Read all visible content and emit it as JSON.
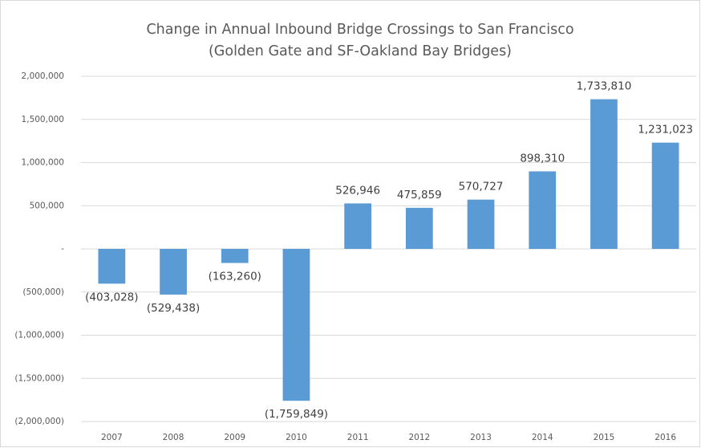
{
  "chart_data": {
    "type": "bar",
    "title": "Change in Annual Inbound Bridge Crossings to San Francisco",
    "subtitle": "(Golden Gate and SF-Oakland Bay Bridges)",
    "categories": [
      "2007",
      "2008",
      "2009",
      "2010",
      "2011",
      "2012",
      "2013",
      "2014",
      "2015",
      "2016"
    ],
    "values": [
      -403028,
      -529438,
      -163260,
      -1759849,
      526946,
      475859,
      570727,
      898310,
      1733810,
      1231023
    ],
    "value_labels": [
      "(403,028)",
      "(529,438)",
      "(163,260)",
      "(1,759,849)",
      "526,946",
      "475,859",
      "570,727",
      "898,310",
      "1,733,810",
      "1,231,023"
    ],
    "color": "#5b9bd5",
    "ylim": [
      -2000000,
      2000000
    ],
    "yticks": [
      {
        "value": -2000000,
        "label": "(2,000,000)"
      },
      {
        "value": -1500000,
        "label": "(1,500,000)"
      },
      {
        "value": -1000000,
        "label": "(1,000,000)"
      },
      {
        "value": -500000,
        "label": "(500,000)"
      },
      {
        "value": 0,
        "label": "-"
      },
      {
        "value": 500000,
        "label": "500,000"
      },
      {
        "value": 1000000,
        "label": "1,000,000"
      },
      {
        "value": 1500000,
        "label": "1,500,000"
      },
      {
        "value": 2000000,
        "label": "2,000,000"
      }
    ],
    "grid": true
  }
}
